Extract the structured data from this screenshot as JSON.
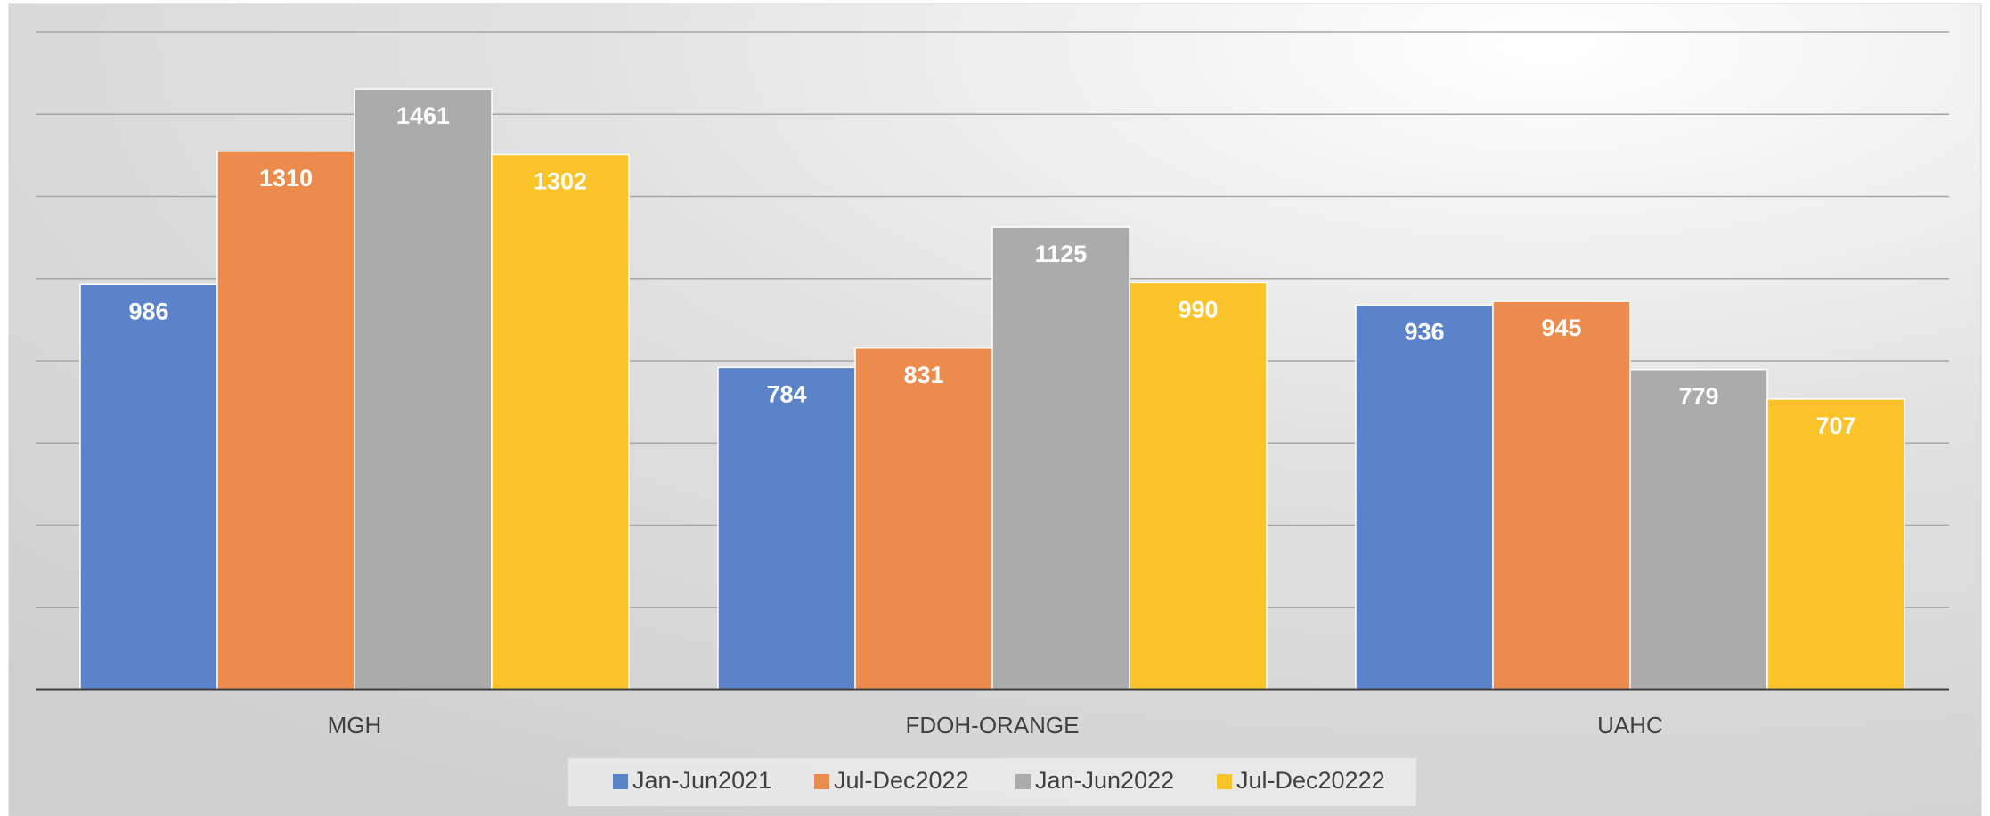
{
  "chart_data": {
    "type": "bar",
    "categories": [
      "MGH",
      "FDOH-ORANGE",
      "UAHC"
    ],
    "series": [
      {
        "name": "Jan-Jun2021",
        "color": "#5b83ca",
        "values": [
          986,
          784,
          936
        ]
      },
      {
        "name": "Jul-Dec2022",
        "color": "#ec8b4b",
        "values": [
          1310,
          831,
          945
        ]
      },
      {
        "name": "Jan-Jun2022",
        "color": "#ababab",
        "values": [
          1461,
          1125,
          779
        ]
      },
      {
        "name": "Jul-Dec20222",
        "color": "#fcc42a",
        "values": [
          1302,
          990,
          707
        ]
      }
    ],
    "ylim": [
      0,
      1600
    ],
    "yticks": [
      0,
      200,
      400,
      600,
      800,
      1000,
      1200,
      1400,
      1600
    ],
    "grid": true,
    "legend": "bottom"
  }
}
